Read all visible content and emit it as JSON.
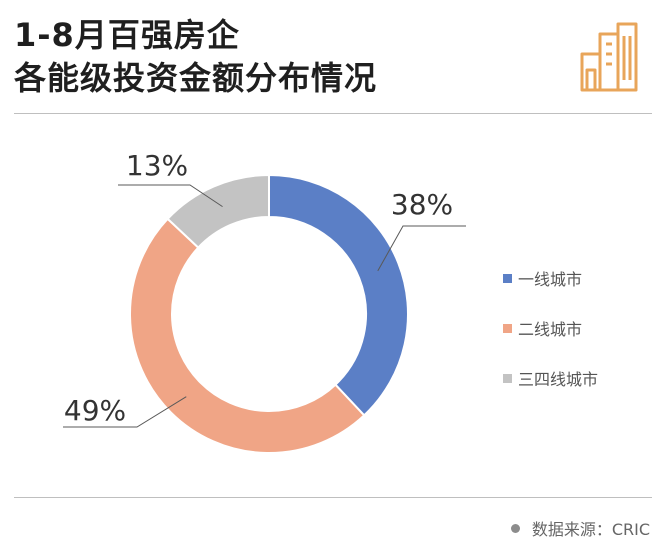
{
  "title": {
    "line1": "1-8月百强房企",
    "line2": "各能级投资金额分布情况"
  },
  "source": {
    "label": "数据来源：CRIC"
  },
  "icons": {
    "header": "building-icon",
    "source": "dot-icon"
  },
  "colors": {
    "tier1": "#5b7fc6",
    "tier2": "#f0a586",
    "tier34": "#c3c3c3",
    "icon": "#e8a55a"
  },
  "chart_data": {
    "type": "pie",
    "style": "donut",
    "title": "1-8月百强房企各能级投资金额分布情况",
    "legend_position": "right",
    "categories": [
      "一线城市",
      "二线城市",
      "三四线城市"
    ],
    "values": [
      38,
      49,
      13
    ],
    "unit": "%",
    "data_labels": [
      "38%",
      "49%",
      "13%"
    ],
    "colors": [
      "#5b7fc6",
      "#f0a586",
      "#c3c3c3"
    ]
  }
}
